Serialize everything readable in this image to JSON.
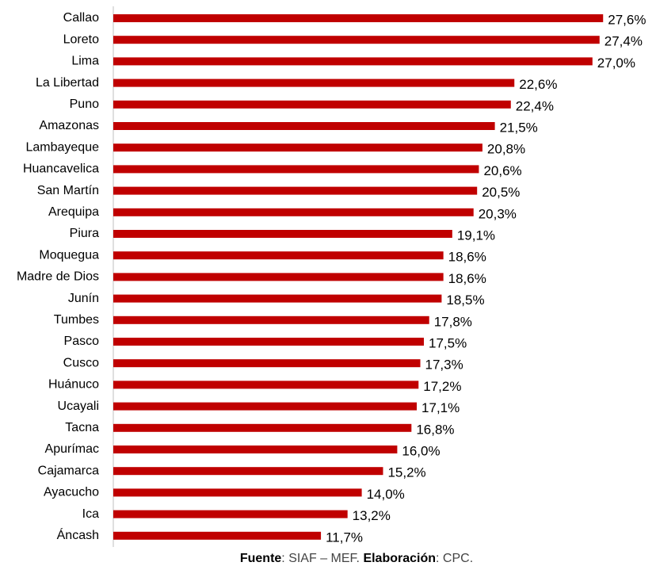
{
  "chart_data": {
    "type": "bar",
    "orientation": "horizontal",
    "categories": [
      "Callao",
      "Loreto",
      "Lima",
      "La Libertad",
      "Puno",
      "Amazonas",
      "Lambayeque",
      "Huancavelica",
      "San Martín",
      "Arequipa",
      "Piura",
      "Moquegua",
      "Madre de Dios",
      "Junín",
      "Tumbes",
      "Pasco",
      "Cusco",
      "Huánuco",
      "Ucayali",
      "Tacna",
      "Apurímac",
      "Cajamarca",
      "Ayacucho",
      "Ica",
      "Áncash"
    ],
    "values": [
      27.6,
      27.4,
      27.0,
      22.6,
      22.4,
      21.5,
      20.8,
      20.6,
      20.5,
      20.3,
      19.1,
      18.6,
      18.6,
      18.5,
      17.8,
      17.5,
      17.3,
      17.2,
      17.1,
      16.8,
      16.0,
      15.2,
      14.0,
      13.2,
      11.7
    ],
    "value_labels": [
      "27,6%",
      "27,4%",
      "27,0%",
      "22,6%",
      "22,4%",
      "21,5%",
      "20,8%",
      "20,6%",
      "20,5%",
      "20,3%",
      "19,1%",
      "18,6%",
      "18,6%",
      "18,5%",
      "17,8%",
      "17,5%",
      "17,3%",
      "17,2%",
      "17,1%",
      "16,8%",
      "16,0%",
      "15,2%",
      "14,0%",
      "13,2%",
      "11,7%"
    ],
    "color": "#c00000",
    "source": {
      "label1": "Fuente",
      "text1": ": SIAF – MEF. ",
      "label2": "Elaboración",
      "text2": ": CPC."
    }
  }
}
